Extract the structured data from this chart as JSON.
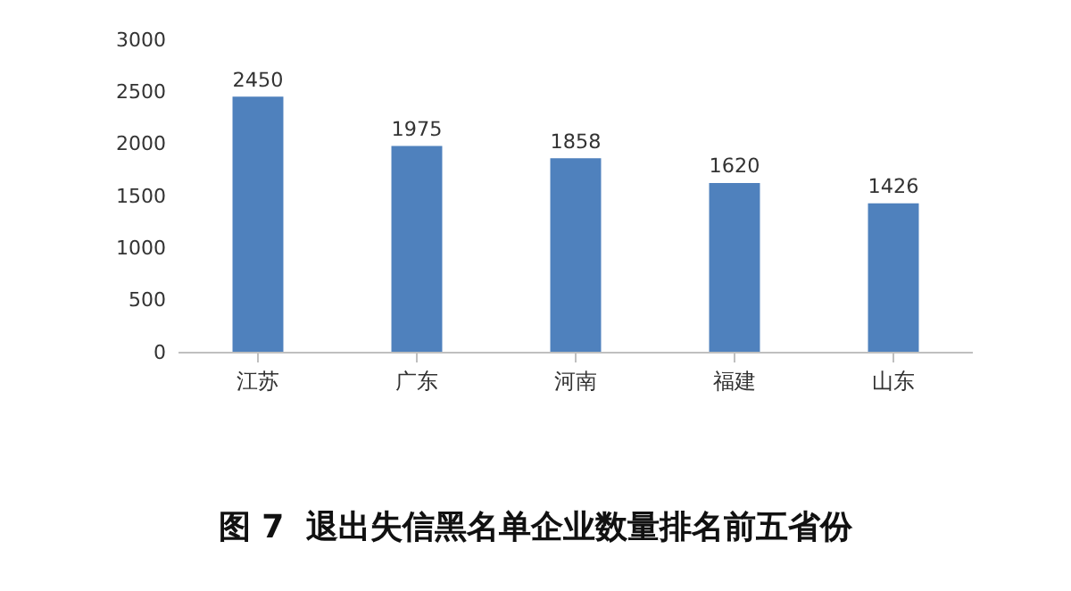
{
  "chart_data": {
    "type": "bar",
    "title": "图 7  退出失信黑名单企业数量排名前五省份",
    "categories": [
      "江苏",
      "广东",
      "河南",
      "福建",
      "山东"
    ],
    "values": [
      2450,
      1975,
      1858,
      1620,
      1426
    ],
    "color": "#4f81bd",
    "ylim": [
      0,
      3000
    ],
    "yticks": [
      0,
      500,
      1000,
      1500,
      2000,
      2500,
      3000
    ],
    "grid": false,
    "data_labels": true
  }
}
